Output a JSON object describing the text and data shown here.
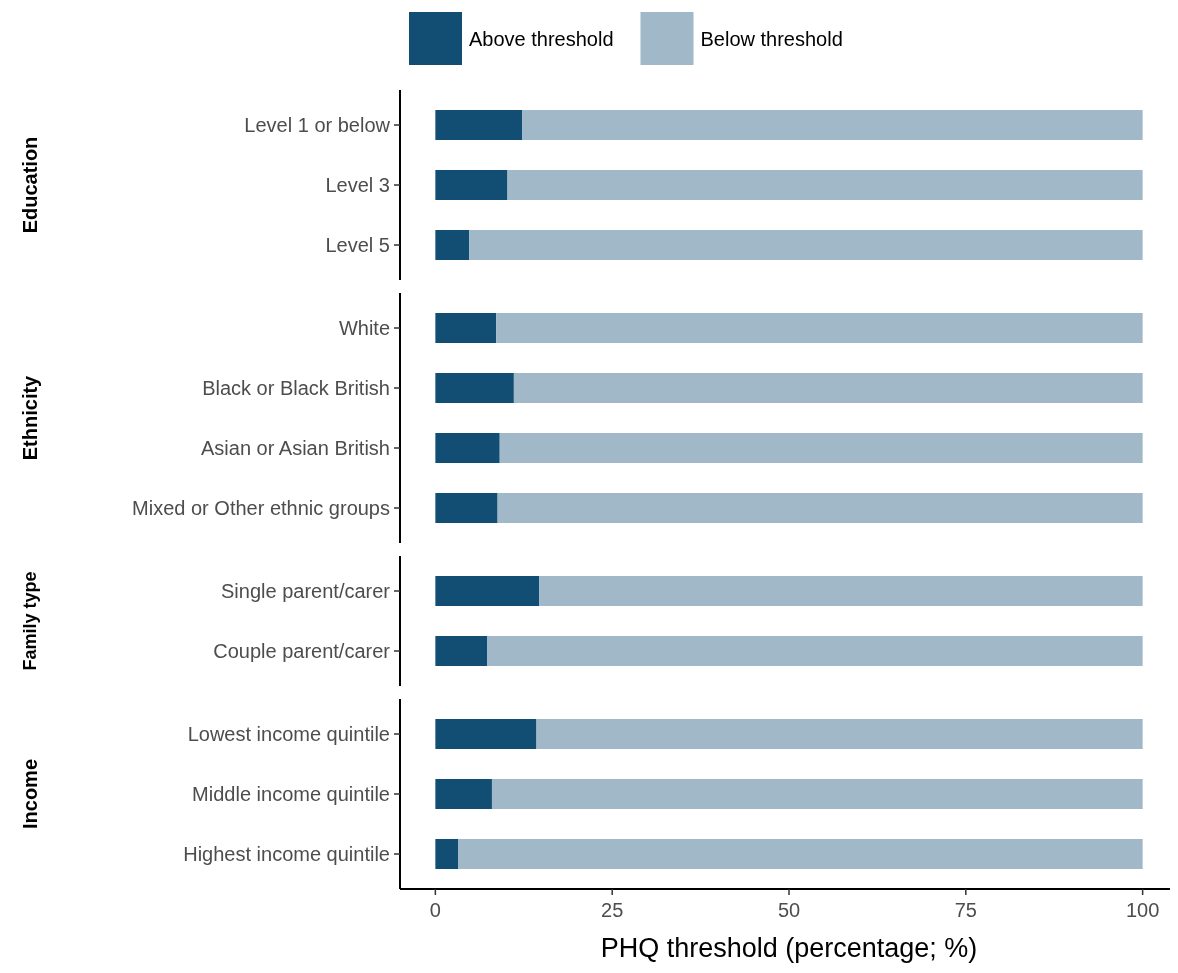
{
  "chart_data": {
    "type": "bar",
    "orientation": "horizontal",
    "stacked": true,
    "xlabel": "PHQ threshold (percentage; %)",
    "categories": [
      "Level 1 or below",
      "Level 3",
      "Level 5",
      null,
      "White",
      "Black or Black British",
      "Asian or Asian British",
      "Mixed or Other ethnic groups",
      null,
      "Single parent/carer",
      "Couple parent/carer",
      null,
      "Lowest income quintile",
      "Middle income quintile",
      "Highest income quintile"
    ],
    "annotations": [
      "Education",
      "Ethnicity",
      "Family type",
      "Income"
    ],
    "xlim": [
      -5,
      105
    ],
    "xticks": [
      0,
      25,
      50,
      75,
      100
    ],
    "legend": "top",
    "series": [
      {
        "name": "Above threshold",
        "color": "#124e74",
        "values": [
          12.3,
          10.2,
          4.8,
          null,
          8.6,
          11.1,
          9.1,
          8.8,
          null,
          14.7,
          7.3,
          null,
          14.3,
          8.0,
          3.2
        ]
      },
      {
        "name": "Below threshold",
        "color": "#a0b8c8",
        "values": [
          87.7,
          89.8,
          95.2,
          null,
          91.4,
          88.9,
          90.9,
          91.2,
          null,
          85.3,
          92.7,
          null,
          85.7,
          92.0,
          96.8
        ]
      }
    ]
  }
}
